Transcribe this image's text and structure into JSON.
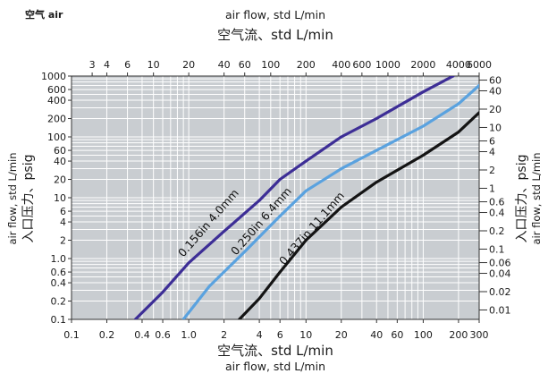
{
  "badge": "空气 air",
  "chart_data": {
    "type": "line",
    "x_scale": "log",
    "y_scale": "log",
    "grid": true,
    "x_bottom": {
      "label_cn": "空气流、std L/min",
      "label_en": "air flow, std L/min",
      "range": [
        0.1,
        300
      ],
      "ticks": [
        0.1,
        0.2,
        0.4,
        0.6,
        1.0,
        2,
        4,
        6,
        10,
        20,
        40,
        60,
        100,
        200,
        300
      ],
      "tick_labels": [
        "0.1",
        "0.2",
        "0.4",
        "0.6",
        "1.0",
        "2",
        "4",
        "6",
        "10",
        "20",
        "40",
        "60",
        "100",
        "200",
        "300"
      ]
    },
    "x_top": {
      "label_cn": "空气流、std L/min",
      "label_en": "air flow, std L/min",
      "range": [
        2,
        6000
      ],
      "ticks": [
        3,
        4,
        6,
        10,
        20,
        40,
        60,
        100,
        200,
        400,
        600,
        1000,
        2000,
        4000,
        6000
      ],
      "tick_labels": [
        "3",
        "4",
        "6",
        "10",
        "20",
        "40",
        "60",
        "100",
        "200",
        "400",
        "600",
        "1000",
        "2000",
        "4000",
        "6000"
      ]
    },
    "y_left": {
      "label_cn": "入口压力、psig",
      "label_en": "air flow, std L/min",
      "range": [
        0.1,
        1000
      ],
      "ticks": [
        0.1,
        0.2,
        0.4,
        0.6,
        1.0,
        2,
        4,
        6,
        10,
        20,
        40,
        60,
        100,
        200,
        400,
        600,
        1000
      ],
      "tick_labels": [
        "0.1",
        "0.2",
        "0.4",
        "0.6",
        "1.0",
        "2",
        "4",
        "6",
        "10",
        "20",
        "40",
        "60",
        "100",
        "200",
        "400",
        "600",
        "1000"
      ]
    },
    "y_right": {
      "label_cn": "入口压力、psig",
      "label_en": "air flow, std L/min",
      "range": [
        0.007,
        70
      ],
      "ticks": [
        0.01,
        0.02,
        0.04,
        0.06,
        0.1,
        0.2,
        0.4,
        0.6,
        1,
        2,
        4,
        6,
        10,
        20,
        40,
        60
      ],
      "tick_labels": [
        "0.01",
        "0.02",
        "0.04",
        "0.06",
        "0.1",
        "0.2",
        "0.4",
        "0.6",
        "1",
        "2",
        "4",
        "6",
        "10",
        "20",
        "40",
        "60"
      ]
    },
    "series": [
      {
        "name": "0.156in  4.0mm",
        "color": "#3d2e96",
        "points": [
          [
            0.35,
            0.1
          ],
          [
            0.6,
            0.28
          ],
          [
            1.0,
            0.85
          ],
          [
            2,
            2.8
          ],
          [
            4,
            9
          ],
          [
            6,
            20
          ],
          [
            10,
            40
          ],
          [
            20,
            100
          ],
          [
            40,
            200
          ],
          [
            100,
            550
          ],
          [
            180,
            1000
          ]
        ]
      },
      {
        "name": "0.250in  6.4mm",
        "color": "#5aa2df",
        "points": [
          [
            0.9,
            0.1
          ],
          [
            1.5,
            0.35
          ],
          [
            3,
            1.3
          ],
          [
            6,
            5
          ],
          [
            10,
            13
          ],
          [
            20,
            30
          ],
          [
            40,
            60
          ],
          [
            100,
            150
          ],
          [
            200,
            350
          ],
          [
            300,
            700
          ]
        ]
      },
      {
        "name": "0.437in  11.1mm",
        "color": "#141414",
        "points": [
          [
            2.7,
            0.1
          ],
          [
            4,
            0.22
          ],
          [
            6,
            0.6
          ],
          [
            10,
            2
          ],
          [
            20,
            7
          ],
          [
            40,
            18
          ],
          [
            100,
            50
          ],
          [
            200,
            120
          ],
          [
            300,
            250
          ]
        ]
      }
    ]
  }
}
